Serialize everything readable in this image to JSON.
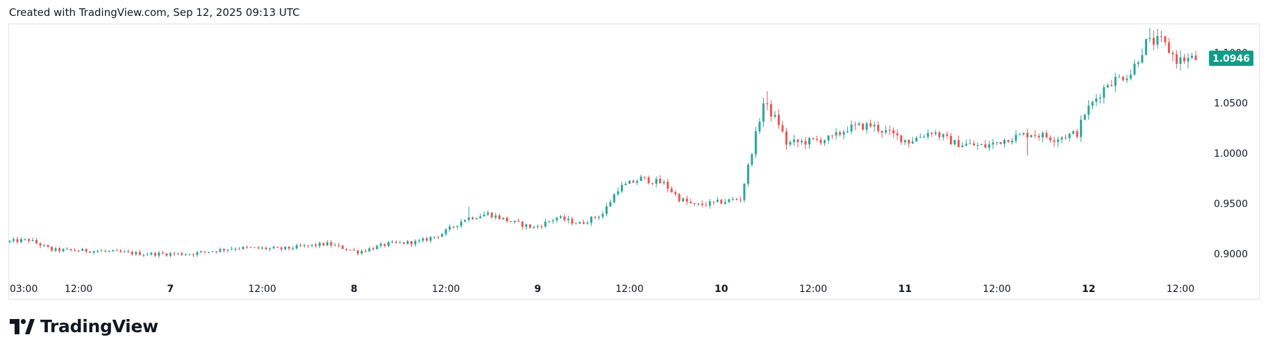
{
  "header": {
    "text": "Created with TradingView.com, Sep 12, 2025 09:13 UTC"
  },
  "brand": {
    "name": "TradingView",
    "icon": "tradingview-logo-icon"
  },
  "colors": {
    "up": "#26a69a",
    "down": "#ef5350",
    "price_tag": "#0f9d88",
    "text": "#131722",
    "border": "#e0e3eb"
  },
  "chart_data": {
    "type": "candlestick",
    "price_range": [
      0.878,
      1.125
    ],
    "y_ticks": [
      "0.9000",
      "0.9500",
      "1.0000",
      "1.0500",
      "1.1000"
    ],
    "x_ticks": [
      {
        "label": "03:00",
        "t": 0,
        "bold": false
      },
      {
        "label": "12:00",
        "t": 9,
        "bold": false
      },
      {
        "label": "7",
        "t": 21,
        "bold": true
      },
      {
        "label": "12:00",
        "t": 33,
        "bold": false
      },
      {
        "label": "8",
        "t": 45,
        "bold": true
      },
      {
        "label": "12:00",
        "t": 57,
        "bold": false
      },
      {
        "label": "9",
        "t": 69,
        "bold": true
      },
      {
        "label": "12:00",
        "t": 81,
        "bold": false
      },
      {
        "label": "10",
        "t": 93,
        "bold": true
      },
      {
        "label": "12:00",
        "t": 105,
        "bold": false
      },
      {
        "label": "11",
        "t": 117,
        "bold": true
      },
      {
        "label": "12:00",
        "t": 129,
        "bold": false
      },
      {
        "label": "12",
        "t": 141,
        "bold": true
      },
      {
        "label": "12:00",
        "t": 153,
        "bold": false
      }
    ],
    "time_range_hours": [
      0,
      156
    ],
    "last_price": "1.0946",
    "anchors": [
      [
        0,
        0.912
      ],
      [
        3,
        0.914
      ],
      [
        6,
        0.904
      ],
      [
        12,
        0.903
      ],
      [
        18,
        0.9
      ],
      [
        24,
        0.9
      ],
      [
        30,
        0.906
      ],
      [
        36,
        0.905
      ],
      [
        42,
        0.91
      ],
      [
        46,
        0.902
      ],
      [
        50,
        0.91
      ],
      [
        54,
        0.912
      ],
      [
        57,
        0.92
      ],
      [
        60,
        0.935
      ],
      [
        63,
        0.94
      ],
      [
        66,
        0.932
      ],
      [
        69,
        0.926
      ],
      [
        72,
        0.936
      ],
      [
        75,
        0.93
      ],
      [
        78,
        0.94
      ],
      [
        80,
        0.965
      ],
      [
        83,
        0.975
      ],
      [
        86,
        0.97
      ],
      [
        88,
        0.955
      ],
      [
        90,
        0.948
      ],
      [
        92,
        0.95
      ],
      [
        96,
        0.955
      ],
      [
        99,
        1.05
      ],
      [
        101,
        1.03
      ],
      [
        102,
        1.01
      ],
      [
        105,
        1.012
      ],
      [
        108,
        1.015
      ],
      [
        110,
        1.025
      ],
      [
        113,
        1.028
      ],
      [
        116,
        1.018
      ],
      [
        118,
        1.012
      ],
      [
        121,
        1.022
      ],
      [
        124,
        1.01
      ],
      [
        128,
        1.007
      ],
      [
        131,
        1.015
      ],
      [
        134,
        1.02
      ],
      [
        137,
        1.015
      ],
      [
        140,
        1.02
      ],
      [
        141,
        1.04
      ],
      [
        144,
        1.07
      ],
      [
        147,
        1.08
      ],
      [
        149,
        1.11
      ],
      [
        151,
        1.112
      ],
      [
        153,
        1.093
      ],
      [
        155,
        1.094
      ]
    ],
    "spikes": [
      {
        "t": 60,
        "high": 0.947
      },
      {
        "t": 99,
        "high": 1.062
      },
      {
        "t": 133,
        "low": 0.998
      },
      {
        "t": 149,
        "high": 1.125
      }
    ]
  }
}
